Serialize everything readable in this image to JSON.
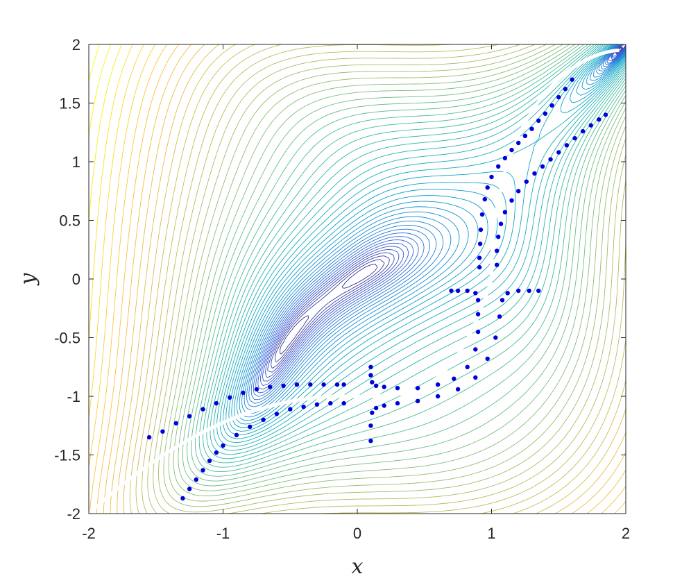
{
  "chart_data": {
    "type": "contour",
    "xlabel": "x",
    "ylabel": "y",
    "xlim": [
      -2,
      2
    ],
    "ylim": [
      -2,
      2
    ],
    "x_ticks": [
      -2,
      -1,
      0,
      1,
      2
    ],
    "y_ticks": [
      -2,
      -1.5,
      -1,
      -0.5,
      0,
      0.5,
      1,
      1.5,
      2
    ],
    "x_tick_labels": [
      "-2",
      "-1",
      "0",
      "1",
      "2"
    ],
    "y_tick_labels": [
      "-2",
      "-1.5",
      "-1",
      "-0.5",
      "0",
      "0.5",
      "1",
      "1.5",
      "2"
    ],
    "grid": false,
    "colormap": "parula",
    "contour_levels": 55,
    "valley_curve_color": "#ffffff",
    "marker_color": "#0000dd",
    "scatter_series": [
      {
        "points": [
          [
            1.6,
            1.7
          ],
          [
            1.55,
            1.62
          ],
          [
            1.5,
            1.55
          ],
          [
            1.45,
            1.48
          ],
          [
            1.4,
            1.41
          ],
          [
            1.35,
            1.35
          ],
          [
            1.3,
            1.28
          ],
          [
            1.25,
            1.22
          ],
          [
            1.2,
            1.16
          ],
          [
            1.15,
            1.1
          ],
          [
            1.1,
            1.03
          ],
          [
            1.05,
            0.96
          ],
          [
            1.0,
            0.87
          ],
          [
            0.97,
            0.78
          ],
          [
            0.95,
            0.68
          ],
          [
            0.93,
            0.55
          ],
          [
            0.92,
            0.42
          ],
          [
            0.915,
            0.3
          ],
          [
            0.91,
            0.18
          ],
          [
            0.91,
            0.1
          ],
          [
            1.85,
            1.4
          ],
          [
            1.8,
            1.36
          ],
          [
            1.74,
            1.31
          ],
          [
            1.68,
            1.26
          ],
          [
            1.62,
            1.2
          ],
          [
            1.56,
            1.14
          ],
          [
            1.5,
            1.08
          ],
          [
            1.44,
            1.02
          ],
          [
            1.38,
            0.96
          ],
          [
            1.32,
            0.9
          ],
          [
            1.26,
            0.83
          ],
          [
            1.2,
            0.75
          ],
          [
            1.15,
            0.67
          ],
          [
            1.1,
            0.57
          ],
          [
            1.07,
            0.47
          ],
          [
            1.05,
            0.36
          ],
          [
            1.04,
            0.24
          ],
          [
            1.04,
            0.12
          ]
        ]
      },
      {
        "points": [
          [
            -1.55,
            -1.35
          ],
          [
            -1.45,
            -1.3
          ],
          [
            -1.35,
            -1.23
          ],
          [
            -1.25,
            -1.17
          ],
          [
            -1.15,
            -1.11
          ],
          [
            -1.05,
            -1.06
          ],
          [
            -0.95,
            -1.01
          ],
          [
            -0.85,
            -0.97
          ],
          [
            -0.75,
            -0.94
          ],
          [
            -0.65,
            -0.92
          ],
          [
            -0.55,
            -0.91
          ],
          [
            -0.45,
            -0.9
          ],
          [
            -0.35,
            -0.9
          ],
          [
            -0.25,
            -0.9
          ],
          [
            -0.15,
            -0.9
          ],
          [
            -0.1,
            -0.9
          ],
          [
            -1.3,
            -1.87
          ],
          [
            -1.25,
            -1.79
          ],
          [
            -1.2,
            -1.71
          ],
          [
            -1.15,
            -1.63
          ],
          [
            -1.1,
            -1.55
          ],
          [
            -1.05,
            -1.48
          ],
          [
            -1.0,
            -1.42
          ],
          [
            -0.9,
            -1.33
          ],
          [
            -0.8,
            -1.26
          ],
          [
            -0.7,
            -1.2
          ],
          [
            -0.6,
            -1.15
          ],
          [
            -0.5,
            -1.11
          ],
          [
            -0.4,
            -1.09
          ],
          [
            -0.3,
            -1.07
          ],
          [
            -0.2,
            -1.06
          ],
          [
            -0.1,
            -1.06
          ]
        ]
      },
      {
        "points": [
          [
            0.1,
            -0.75
          ],
          [
            0.1,
            -0.82
          ],
          [
            0.11,
            -0.88
          ],
          [
            0.14,
            -0.91
          ],
          [
            0.2,
            -0.92
          ],
          [
            0.3,
            -0.93
          ],
          [
            0.45,
            -0.93
          ],
          [
            0.6,
            -0.9
          ],
          [
            0.72,
            -0.85
          ],
          [
            0.82,
            -0.75
          ],
          [
            0.88,
            -0.6
          ],
          [
            0.9,
            -0.45
          ],
          [
            0.9,
            -0.3
          ],
          [
            0.9,
            -0.18
          ],
          [
            0.88,
            -0.12
          ],
          [
            0.82,
            -0.1
          ],
          [
            0.75,
            -0.1
          ],
          [
            0.7,
            -0.1
          ],
          [
            0.1,
            -1.38
          ],
          [
            0.1,
            -1.25
          ],
          [
            0.11,
            -1.14
          ],
          [
            0.14,
            -1.1
          ],
          [
            0.2,
            -1.08
          ],
          [
            0.3,
            -1.06
          ],
          [
            0.45,
            -1.04
          ],
          [
            0.6,
            -1.0
          ],
          [
            0.75,
            -0.94
          ],
          [
            0.88,
            -0.84
          ],
          [
            0.97,
            -0.68
          ],
          [
            1.03,
            -0.5
          ],
          [
            1.06,
            -0.32
          ],
          [
            1.08,
            -0.18
          ],
          [
            1.12,
            -0.12
          ],
          [
            1.2,
            -0.1
          ],
          [
            1.28,
            -0.1
          ],
          [
            1.35,
            -0.1
          ]
        ]
      }
    ]
  }
}
